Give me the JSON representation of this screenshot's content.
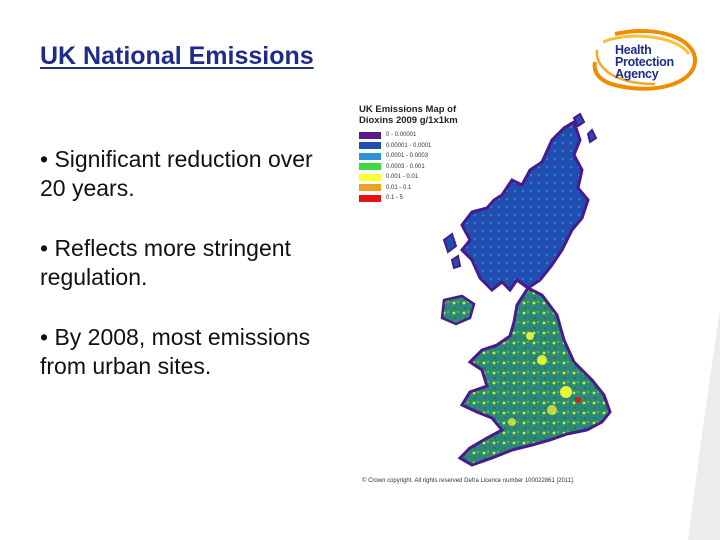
{
  "slide": {
    "title": "UK National Emissions",
    "bullets": [
      "• Significant reduction over 20 years.",
      "• Reflects more stringent regulation.",
      "• By 2008, most emissions from urban sites."
    ]
  },
  "logo": {
    "text": [
      "Health",
      "Protection",
      "Agency"
    ],
    "colors": {
      "text": "#1f2d8a",
      "ring_dark": "#f08c00",
      "ring_light": "#fbbf3a"
    }
  },
  "map": {
    "title_lines": [
      "UK Emissions Map of",
      "Dioxins 2009 g/1x1km"
    ],
    "legend": [
      {
        "label": "0 - 0.00001",
        "color": "#5a1a8c"
      },
      {
        "label": "0.00001 - 0.0001",
        "color": "#1f4fb0"
      },
      {
        "label": "0.0001 - 0.0003",
        "color": "#2f8fd8"
      },
      {
        "label": "0.0003 - 0.001",
        "color": "#3fd840"
      },
      {
        "label": "0.001 - 0.01",
        "color": "#ffff30"
      },
      {
        "label": "0.01 - 0.1",
        "color": "#f0a020"
      },
      {
        "label": "0.1 - 5",
        "color": "#e81010"
      }
    ],
    "copyright": "© Crown copyright. All rights reserved Defra Licence number 100022861 [2011]."
  }
}
